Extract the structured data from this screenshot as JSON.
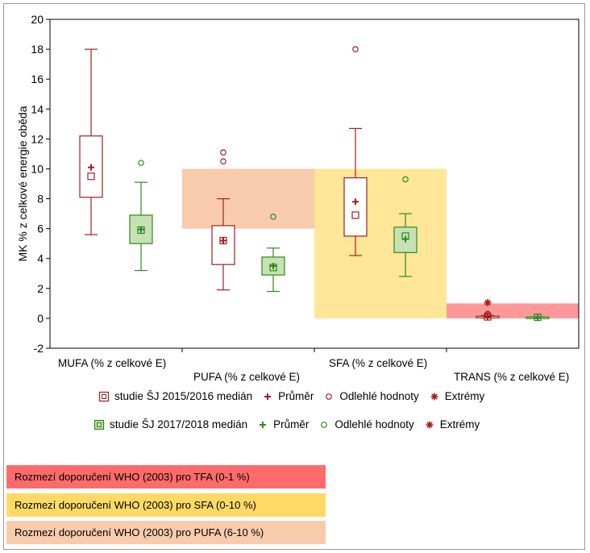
{
  "chart_data": {
    "type": "box",
    "ylabel": "MK % z celkové energie oběda",
    "ylim": [
      -2,
      20
    ],
    "yticks": [
      -2,
      0,
      2,
      4,
      6,
      8,
      10,
      12,
      14,
      16,
      18,
      20
    ],
    "grid": false,
    "categories": [
      "MUFA (% z celkové E)",
      "PUFA (% z celkové E)",
      "SFA  (% z celkové E)",
      "TRANS  (% z celkové E)"
    ],
    "series": [
      {
        "name": "studie ŠJ 2015/2016",
        "color": "#a31f1f",
        "fill": "#ffffff",
        "boxes": [
          {
            "category": "MUFA (% z celkové E)",
            "median": 9.5,
            "q1": 8.1,
            "q3": 12.2,
            "min": 5.6,
            "max": 18.0,
            "mean": 10.1,
            "outliers": [],
            "extremes": []
          },
          {
            "category": "PUFA (% z celkové E)",
            "median": 5.2,
            "q1": 3.6,
            "q3": 6.2,
            "min": 1.9,
            "max": 8.0,
            "mean": 5.2,
            "outliers": [
              10.5,
              11.1
            ],
            "extremes": []
          },
          {
            "category": "SFA  (% z celkové E)",
            "median": 6.9,
            "q1": 5.5,
            "q3": 9.4,
            "min": 4.2,
            "max": 12.7,
            "mean": 7.8,
            "outliers": [
              18.0
            ],
            "extremes": []
          },
          {
            "category": "TRANS  (% z celkové E)",
            "median": 0.1,
            "q1": 0.08,
            "q3": 0.14,
            "min": 0.05,
            "max": 0.18,
            "mean": 0.1,
            "outliers": [
              0.2,
              0.3
            ],
            "extremes": [
              1.05
            ]
          }
        ]
      },
      {
        "name": "studie ŠJ 2017/2018",
        "color": "#2d8a1e",
        "fill": "#c7e0b4",
        "boxes": [
          {
            "category": "MUFA (% z celkové E)",
            "median": 5.9,
            "q1": 5.0,
            "q3": 6.9,
            "min": 3.2,
            "max": 9.1,
            "mean": 5.95,
            "outliers": [
              10.4
            ],
            "extremes": []
          },
          {
            "category": "PUFA (% z celkové E)",
            "median": 3.4,
            "q1": 2.9,
            "q3": 4.1,
            "min": 1.8,
            "max": 4.7,
            "mean": 3.5,
            "outliers": [
              6.8
            ],
            "extremes": []
          },
          {
            "category": "SFA  (% z celkové E)",
            "median": 5.5,
            "q1": 4.4,
            "q3": 6.1,
            "min": 2.8,
            "max": 7.0,
            "mean": 5.3,
            "outliers": [
              9.3
            ],
            "extremes": []
          },
          {
            "category": "TRANS  (% z celkové E)",
            "median": 0.07,
            "q1": 0.05,
            "q3": 0.09,
            "min": 0.03,
            "max": 0.1,
            "mean": 0.07,
            "outliers": [],
            "extremes": []
          }
        ]
      }
    ],
    "who_ranges": [
      {
        "category": "PUFA (% z celkové E)",
        "from": 6,
        "to": 10,
        "color": "#f8cbad"
      },
      {
        "category": "SFA  (% z celkové E)",
        "from": 0,
        "to": 10,
        "color": "#ffe699"
      },
      {
        "category": "TRANS  (% z celkové E)",
        "from": 0,
        "to": 1,
        "color": "#ff9999"
      }
    ]
  },
  "legend": {
    "row1": {
      "box": "studie ŠJ 2015/2016 medián",
      "mean": "Průměr",
      "outlier": "Odlehlé hodnoty",
      "extreme": "Extrémy",
      "color": "#a31f1f"
    },
    "row2": {
      "box": "studie ŠJ 2017/2018 medián",
      "mean": "Průměr",
      "outlier": "Odlehlé hodnoty",
      "extreme": "Extrémy",
      "color": "#2d8a1e"
    }
  },
  "who_legend": [
    {
      "label": "Rozmezí doporučení WHO (2003) pro TFA (0-1 %)",
      "color": "#ff6b6b"
    },
    {
      "label": "Rozmezí doporučení WHO (2003) pro SFA (0-10 %)",
      "color": "#ffd966"
    },
    {
      "label": "Rozmezí doporučení WHO (2003) pro PUFA (6-10 %)",
      "color": "#f8cbad"
    }
  ]
}
